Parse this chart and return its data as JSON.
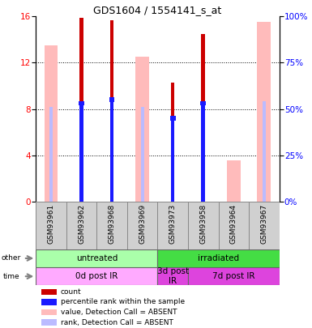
{
  "title": "GDS1604 / 1554141_s_at",
  "samples": [
    "GSM93961",
    "GSM93962",
    "GSM93968",
    "GSM93969",
    "GSM93973",
    "GSM93958",
    "GSM93964",
    "GSM93967"
  ],
  "count_values": [
    0,
    15.85,
    15.65,
    0,
    10.3,
    14.5,
    0,
    0
  ],
  "rank_values": [
    0,
    8.5,
    8.8,
    0,
    7.2,
    8.5,
    0,
    0
  ],
  "absent_value": [
    13.5,
    0,
    0,
    12.5,
    0,
    0,
    3.6,
    15.5
  ],
  "absent_rank": [
    8.2,
    0,
    0,
    8.2,
    0,
    0,
    0,
    8.7
  ],
  "ylim": [
    0,
    16
  ],
  "y2lim": [
    0,
    100
  ],
  "yticks": [
    0,
    4,
    8,
    12,
    16
  ],
  "y2ticks": [
    0,
    25,
    50,
    75,
    100
  ],
  "color_count": "#cc0000",
  "color_rank": "#1a1aff",
  "color_absent_val": "#ffbbbb",
  "color_absent_rank": "#bbbbff",
  "group_other": [
    {
      "label": "untreated",
      "start": 0,
      "end": 4,
      "color": "#aaffaa"
    },
    {
      "label": "irradiated",
      "start": 4,
      "end": 8,
      "color": "#44dd44"
    }
  ],
  "group_time": [
    {
      "label": "0d post IR",
      "start": 0,
      "end": 4,
      "color": "#ffaaff"
    },
    {
      "label": "3d post\nIR",
      "start": 4,
      "end": 5,
      "color": "#dd44dd"
    },
    {
      "label": "7d post IR",
      "start": 5,
      "end": 8,
      "color": "#dd44dd"
    }
  ],
  "legend_items": [
    {
      "label": "count",
      "color": "#cc0000"
    },
    {
      "label": "percentile rank within the sample",
      "color": "#1a1aff"
    },
    {
      "label": "value, Detection Call = ABSENT",
      "color": "#ffbbbb"
    },
    {
      "label": "rank, Detection Call = ABSENT",
      "color": "#bbbbff"
    }
  ]
}
